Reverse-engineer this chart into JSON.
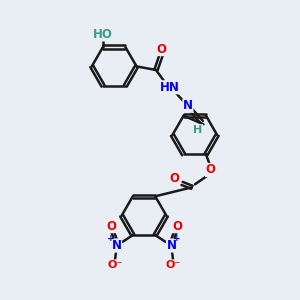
{
  "bg_color": "#e8eef4",
  "bond_color": "#1a1a1a",
  "bond_width": 1.8,
  "dbo": 0.055,
  "atom_H_color": "#3d9a8a",
  "atom_N_color": "#0000ee",
  "atom_O_color": "#ee0000",
  "figsize": [
    3.0,
    3.0
  ],
  "dpi": 100,
  "xlim": [
    0,
    10
  ],
  "ylim": [
    0,
    10
  ]
}
